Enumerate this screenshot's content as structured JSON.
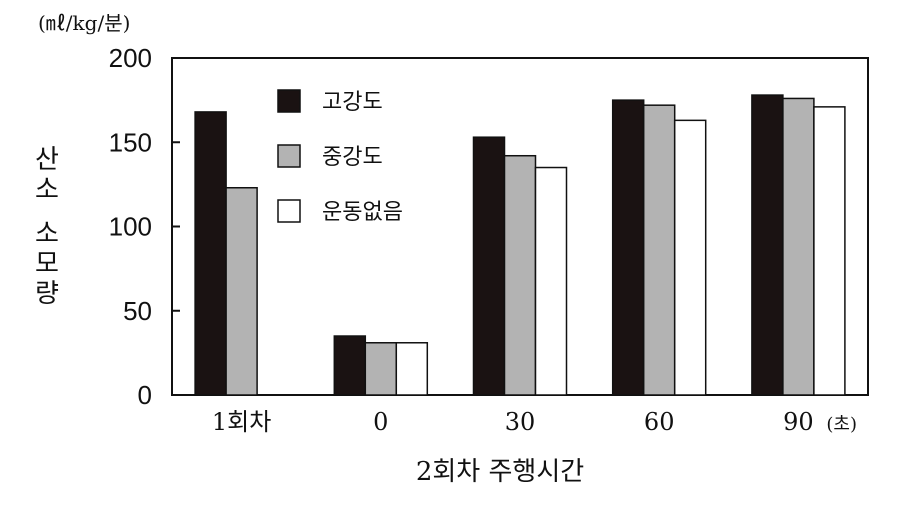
{
  "chart_data": {
    "type": "bar",
    "unit_label": "(㎖/kg/분)",
    "ylabel": "산소 소모량",
    "xlabel": "2회차 주행시간",
    "x_suffix": "(초)",
    "ylim": [
      0,
      200
    ],
    "yticks": [
      0,
      50,
      100,
      150,
      200
    ],
    "categories": [
      "1회차",
      "0",
      "30",
      "60",
      "90"
    ],
    "series": [
      {
        "name": "고강도",
        "color": "#1a1212",
        "values": [
          168,
          35,
          153,
          175,
          178
        ]
      },
      {
        "name": "중강도",
        "color": "#b3b3b3",
        "values": [
          123,
          31,
          142,
          172,
          176
        ]
      },
      {
        "name": "운동없음",
        "color": "#ffffff",
        "values": [
          null,
          31,
          135,
          163,
          171
        ]
      }
    ],
    "legend_position": "top-left",
    "grid": false
  }
}
